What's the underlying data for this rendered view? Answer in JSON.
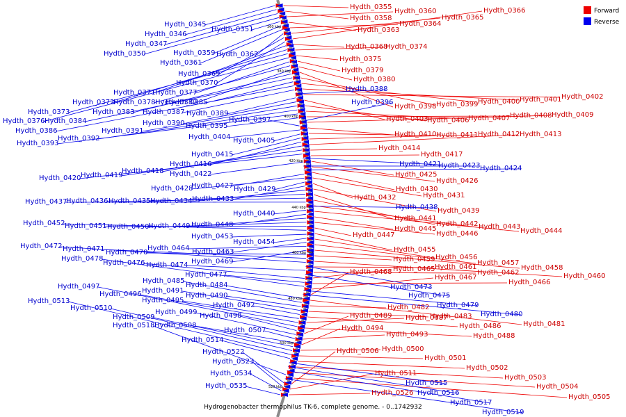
{
  "caption": "Hydrogenobacter thermophilus TK-6, complete genome. - 0..1742932",
  "legend": [
    {
      "label": "Forward",
      "color": "#ee0000"
    },
    {
      "label": "Reverse",
      "color": "#0000ee"
    }
  ],
  "ticks": [
    "360 kbp",
    "380 kbp",
    "400 kbp",
    "420 kbp",
    "440 kbp",
    "460 kbp",
    "480 kbp",
    "500 kbp",
    "520 kbp"
  ],
  "forward_genes": [
    "Hydth_0355",
    "Hydth_0358",
    "Hydth_0360",
    "Hydth_0363",
    "Hydth_0364",
    "Hydth_0365",
    "Hydth_0366",
    "Hydth_0368",
    "Hydth_0374",
    "Hydth_0375",
    "Hydth_0379",
    "Hydth_0380",
    "Hydth_0398",
    "Hydth_0399",
    "Hydth_0400",
    "Hydth_0401",
    "Hydth_0402",
    "Hydth_0403",
    "Hydth_0406",
    "Hydth_0407",
    "Hydth_0408",
    "Hydth_0409",
    "Hydth_0410",
    "Hydth_0411",
    "Hydth_0412",
    "Hydth_0413",
    "Hydth_0414",
    "Hydth_0417",
    "Hydth_0425",
    "Hydth_0426",
    "Hydth_0430",
    "Hydth_0431",
    "Hydth_0432",
    "Hydth_0439",
    "Hydth_0441",
    "Hydth_0442",
    "Hydth_0443",
    "Hydth_0444",
    "Hydth_0445",
    "Hydth_0446",
    "Hydth_0447",
    "Hydth_0455",
    "Hydth_0456",
    "Hydth_0457",
    "Hydth_0458",
    "Hydth_0459",
    "Hydth_0460",
    "Hydth_0461",
    "Hydth_0462",
    "Hydth_0465",
    "Hydth_0466",
    "Hydth_0467",
    "Hydth_0468",
    "Hydth_0481",
    "Hydth_0482",
    "Hydth_0483",
    "Hydth_0486",
    "Hydth_0487",
    "Hydth_0488",
    "Hydth_0489",
    "Hydth_0493",
    "Hydth_0494",
    "Hydth_0500",
    "Hydth_0501",
    "Hydth_0502",
    "Hydth_0503",
    "Hydth_0504",
    "Hydth_0505",
    "Hydth_0506",
    "Hydth_0511",
    "Hydth_0526"
  ],
  "reverse_genes": [
    "Hydth_0345",
    "Hydth_0346",
    "Hydth_0347",
    "Hydth_0350",
    "Hydth_0351",
    "Hydth_0359",
    "Hydth_0361",
    "Hydth_0362",
    "Hydth_0369",
    "Hydth_0370",
    "Hydth_0371",
    "Hydth_0372",
    "Hydth_0373",
    "Hydth_0376",
    "Hydth_0377",
    "Hydth_0378",
    "Hydth_0382",
    "Hydth_0383",
    "Hydth_0384",
    "Hydth_0385",
    "Hydth_0386",
    "Hydth_0387",
    "Hydth_0388",
    "Hydth_0389",
    "Hydth_0390",
    "Hydth_0391",
    "Hydth_0392",
    "Hydth_0393",
    "Hydth_0395",
    "Hydth_0396",
    "Hydth_0397",
    "Hydth_0404",
    "Hydth_0405",
    "Hydth_0415",
    "Hydth_0416",
    "Hydth_0418",
    "Hydth_0419",
    "Hydth_0420",
    "Hydth_0421",
    "Hydth_0422",
    "Hydth_0423",
    "Hydth_0424",
    "Hydth_0427",
    "Hydth_0428",
    "Hydth_0429",
    "Hydth_0433",
    "Hydth_0434",
    "Hydth_0435",
    "Hydth_0436",
    "Hydth_0437",
    "Hydth_0438",
    "Hydth_0440",
    "Hydth_0448",
    "Hydth_0449",
    "Hydth_0450",
    "Hydth_0451",
    "Hydth_0452",
    "Hydth_0453",
    "Hydth_0454",
    "Hydth_0463",
    "Hydth_0464",
    "Hydth_0469",
    "Hydth_0470",
    "Hydth_0471",
    "Hydth_0472",
    "Hydth_0473",
    "Hydth_0474",
    "Hydth_0475",
    "Hydth_0476",
    "Hydth_0477",
    "Hydth_0478",
    "Hydth_0479",
    "Hydth_0480",
    "Hydth_0484",
    "Hydth_0485",
    "Hydth_0490",
    "Hydth_0491",
    "Hydth_0492",
    "Hydth_0495",
    "Hydth_0496",
    "Hydth_0497",
    "Hydth_0498",
    "Hydth_0499",
    "Hydth_0507",
    "Hydth_0508",
    "Hydth_0509",
    "Hydth_0510",
    "Hydth_0513",
    "Hydth_0514",
    "Hydth_0515",
    "Hydth_0516",
    "Hydth_0517",
    "Hydth_0518",
    "Hydth_0519",
    "Hydth_0522",
    "Hydth_0523",
    "Hydth_0534",
    "Hydth_0535"
  ]
}
